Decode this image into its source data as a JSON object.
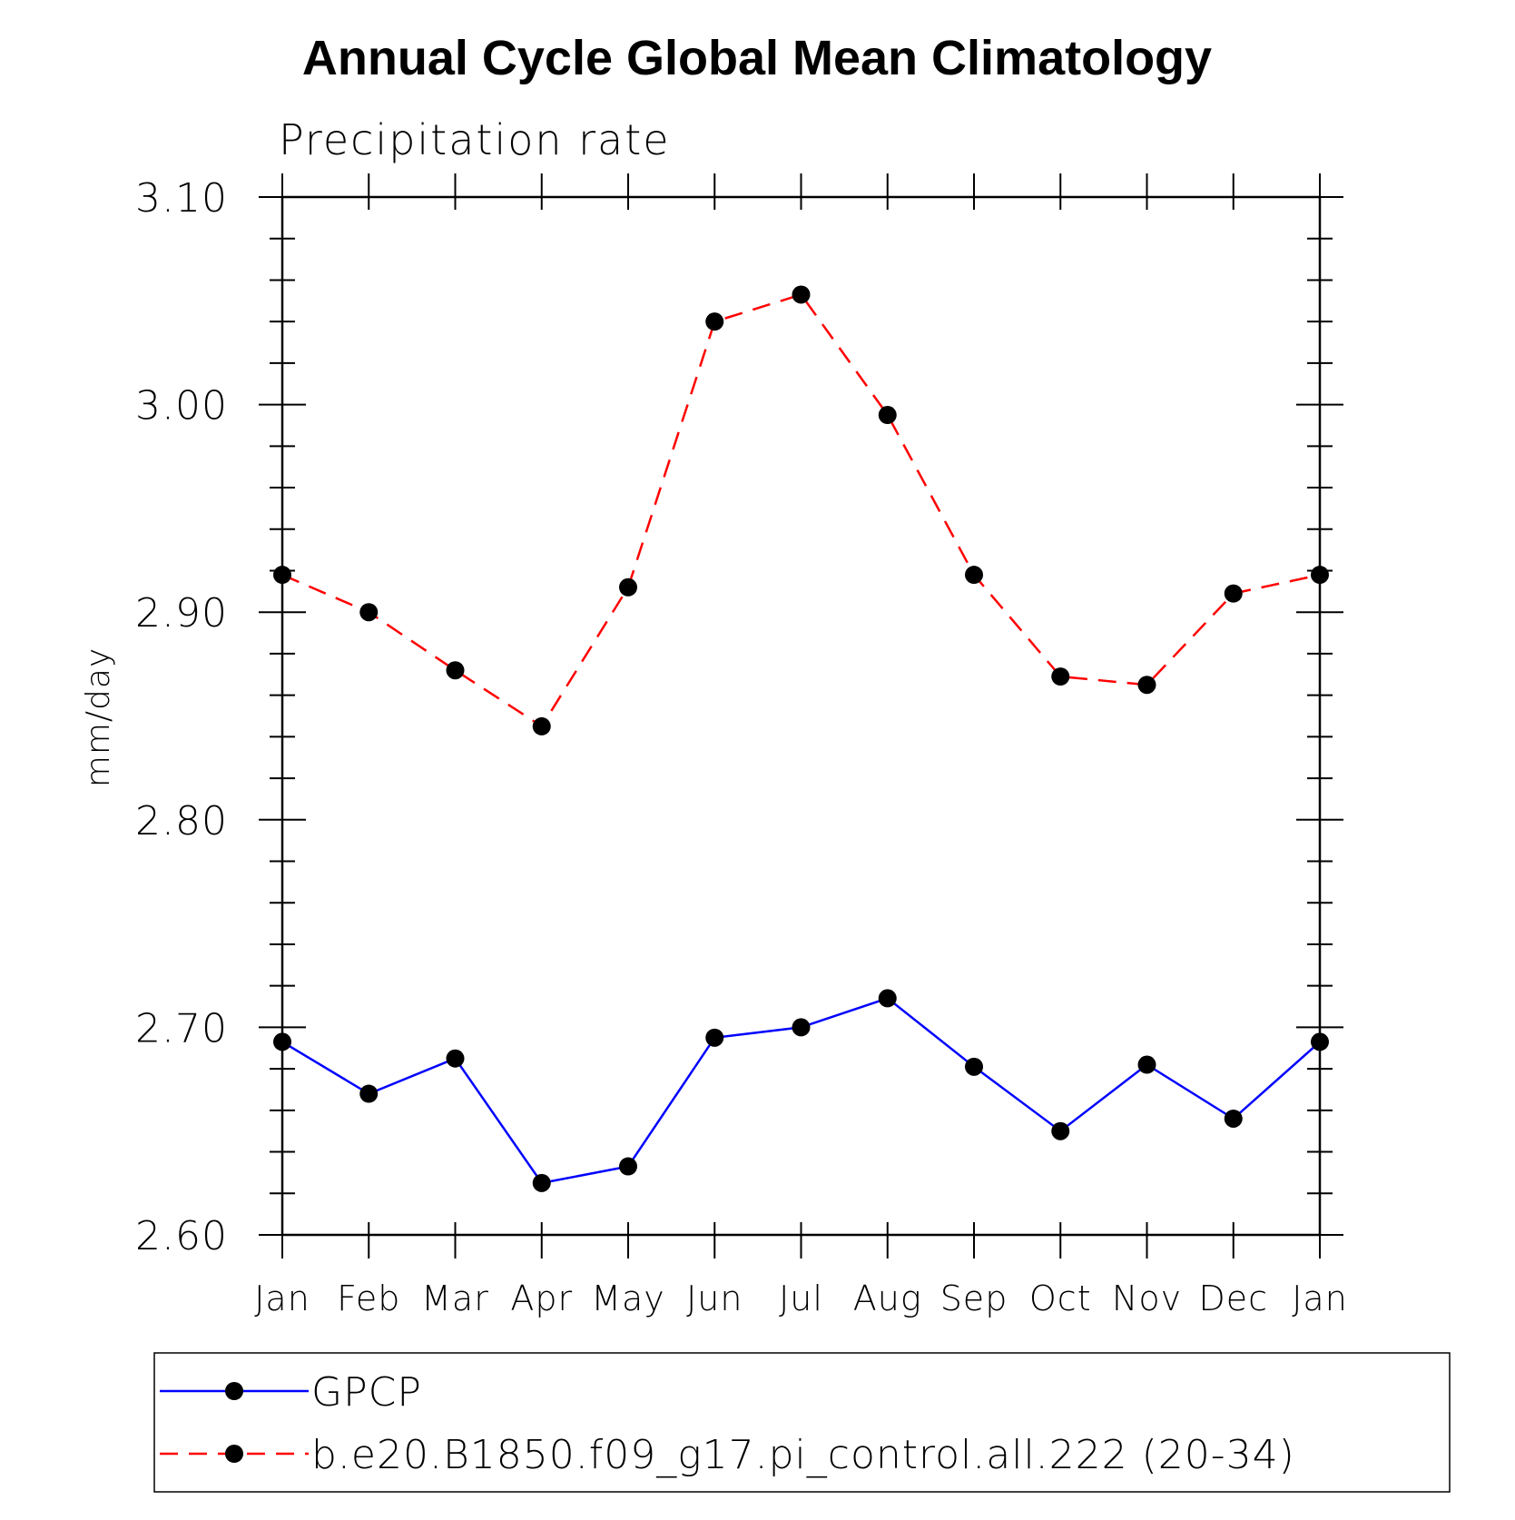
{
  "chart_data": {
    "type": "line",
    "title": "Annual Cycle Global Mean Climatology",
    "subtitle": "Precipitation rate",
    "xlabel": "",
    "ylabel": "mm/day",
    "categories": [
      "Jan",
      "Feb",
      "Mar",
      "Apr",
      "May",
      "Jun",
      "Jul",
      "Aug",
      "Sep",
      "Oct",
      "Nov",
      "Dec",
      "Jan"
    ],
    "ylim": [
      2.6,
      3.1
    ],
    "yticks": [
      "2.60",
      "2.70",
      "2.80",
      "2.90",
      "3.00",
      "3.10"
    ],
    "grid": false,
    "legend_position": "bottom",
    "series": [
      {
        "name": "GPCP",
        "color": "#0000ff",
        "dash": "solid",
        "marker": "filled-circle",
        "values": [
          2.693,
          2.668,
          2.685,
          2.625,
          2.633,
          2.695,
          2.7,
          2.714,
          2.681,
          2.65,
          2.682,
          2.656,
          2.693
        ]
      },
      {
        "name": "b.e20.B1850.f09_g17.pi_control.all.222 (20-34)",
        "color": "#ff0000",
        "dash": "dashed",
        "marker": "filled-circle",
        "values": [
          2.918,
          2.9,
          2.872,
          2.845,
          2.912,
          3.04,
          3.053,
          2.995,
          2.918,
          2.869,
          2.865,
          2.909,
          2.918
        ]
      }
    ]
  }
}
